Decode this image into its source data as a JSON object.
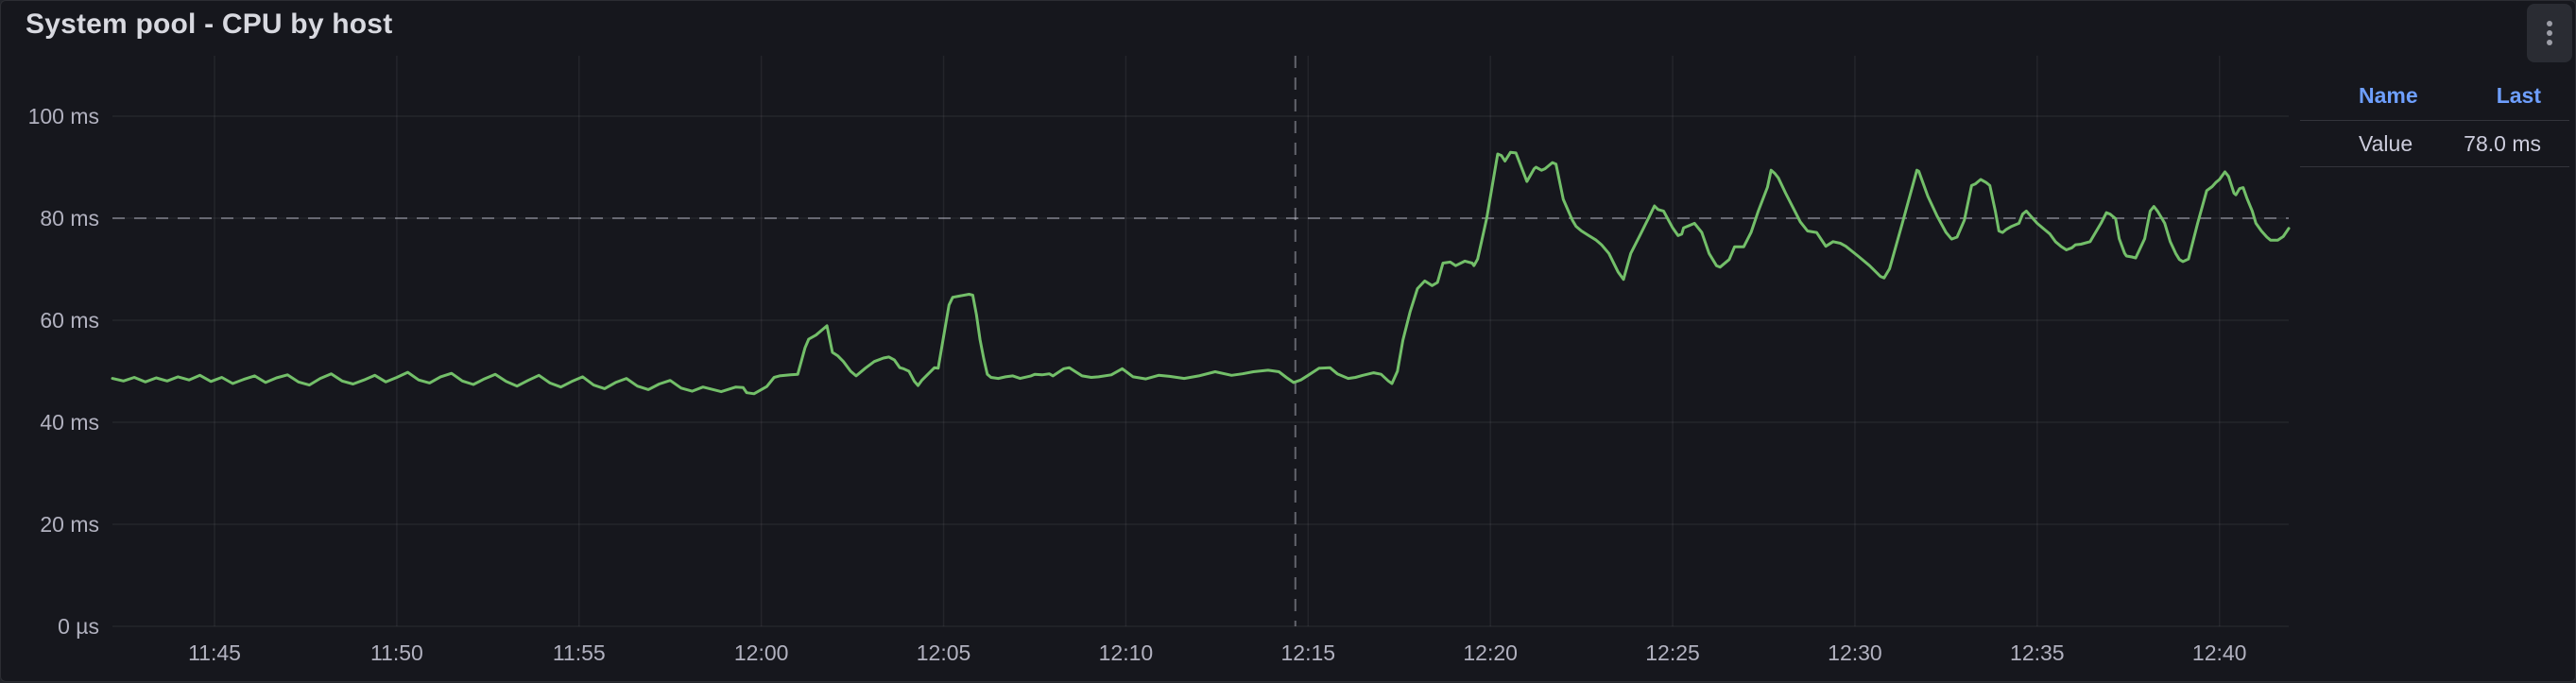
{
  "panel": {
    "title": "System pool - CPU by host",
    "menu_icon": "kebab-vertical-dots"
  },
  "colors": {
    "panel_bg": "#16171d",
    "series_green": "#73bf69",
    "legend_header_blue": "#6e9fff",
    "tick_text": "rgba(204,204,220,0.85)",
    "gridline": "rgba(204,204,220,0.08)",
    "crosshair": "rgba(204,204,220,0.42)"
  },
  "legend": {
    "name_header": "Name",
    "last_header": "Last"
  },
  "chart_data": {
    "type": "line",
    "title": "System pool - CPU by host",
    "unit": "ms",
    "legend_position": "right",
    "grid": true,
    "x_axis": {
      "min_minutes": 42.2,
      "max_minutes": 101.9,
      "note": "minutes after 11:00",
      "ticks": [
        {
          "t": 45,
          "label": "11:45"
        },
        {
          "t": 50,
          "label": "11:50"
        },
        {
          "t": 55,
          "label": "11:55"
        },
        {
          "t": 60,
          "label": "12:00"
        },
        {
          "t": 65,
          "label": "12:05"
        },
        {
          "t": 70,
          "label": "12:10"
        },
        {
          "t": 75,
          "label": "12:15"
        },
        {
          "t": 80,
          "label": "12:20"
        },
        {
          "t": 85,
          "label": "12:25"
        },
        {
          "t": 90,
          "label": "12:30"
        },
        {
          "t": 95,
          "label": "12:35"
        },
        {
          "t": 100,
          "label": "12:40"
        }
      ]
    },
    "y_axis": {
      "min": 0,
      "plot_max": 112,
      "ticks": [
        {
          "v": 0,
          "label": "0 µs"
        },
        {
          "v": 20,
          "label": "20 ms"
        },
        {
          "v": 40,
          "label": "40 ms"
        },
        {
          "v": 60,
          "label": "60 ms"
        },
        {
          "v": 80,
          "label": "80 ms"
        },
        {
          "v": 100,
          "label": "100 ms"
        }
      ]
    },
    "crosshair": {
      "t": 74.65,
      "v": 80
    },
    "series": [
      {
        "name": "Value",
        "color": "#73bf69",
        "last": "78.0 ms",
        "points": [
          [
            42.2,
            48.6
          ],
          [
            42.5,
            48.1
          ],
          [
            42.8,
            48.8
          ],
          [
            43.1,
            47.9
          ],
          [
            43.4,
            48.7
          ],
          [
            43.7,
            48.1
          ],
          [
            44.0,
            48.9
          ],
          [
            44.3,
            48.3
          ],
          [
            44.6,
            49.2
          ],
          [
            44.9,
            48.0
          ],
          [
            45.2,
            48.8
          ],
          [
            45.5,
            47.6
          ],
          [
            45.8,
            48.4
          ],
          [
            46.1,
            49.1
          ],
          [
            46.4,
            47.8
          ],
          [
            46.7,
            48.7
          ],
          [
            47.0,
            49.3
          ],
          [
            47.3,
            47.9
          ],
          [
            47.6,
            47.3
          ],
          [
            47.9,
            48.6
          ],
          [
            48.2,
            49.5
          ],
          [
            48.5,
            48.1
          ],
          [
            48.8,
            47.5
          ],
          [
            49.1,
            48.3
          ],
          [
            49.4,
            49.2
          ],
          [
            49.7,
            47.9
          ],
          [
            50.0,
            48.8
          ],
          [
            50.3,
            49.8
          ],
          [
            50.6,
            48.3
          ],
          [
            50.9,
            47.7
          ],
          [
            51.2,
            48.9
          ],
          [
            51.5,
            49.6
          ],
          [
            51.8,
            48.1
          ],
          [
            52.1,
            47.4
          ],
          [
            52.4,
            48.5
          ],
          [
            52.7,
            49.4
          ],
          [
            53.0,
            48.0
          ],
          [
            53.3,
            47.1
          ],
          [
            53.6,
            48.2
          ],
          [
            53.9,
            49.2
          ],
          [
            54.2,
            47.7
          ],
          [
            54.5,
            46.9
          ],
          [
            54.8,
            48.0
          ],
          [
            55.1,
            48.9
          ],
          [
            55.4,
            47.3
          ],
          [
            55.7,
            46.6
          ],
          [
            56.0,
            47.8
          ],
          [
            56.3,
            48.6
          ],
          [
            56.6,
            47.1
          ],
          [
            56.9,
            46.4
          ],
          [
            57.2,
            47.5
          ],
          [
            57.5,
            48.2
          ],
          [
            57.8,
            46.7
          ],
          [
            58.1,
            46.1
          ],
          [
            58.4,
            46.9
          ],
          [
            58.9,
            46.0
          ],
          [
            59.3,
            46.9
          ],
          [
            59.5,
            46.8
          ],
          [
            59.6,
            45.8
          ],
          [
            59.8,
            45.6
          ],
          [
            60.15,
            47.0
          ],
          [
            60.35,
            48.8
          ],
          [
            60.5,
            49.1
          ],
          [
            60.8,
            49.3
          ],
          [
            61.0,
            49.4
          ],
          [
            61.2,
            54.6
          ],
          [
            61.3,
            56.3
          ],
          [
            61.5,
            57.1
          ],
          [
            61.8,
            58.9
          ],
          [
            61.95,
            53.7
          ],
          [
            62.1,
            53.0
          ],
          [
            62.25,
            51.9
          ],
          [
            62.45,
            50.0
          ],
          [
            62.6,
            49.1
          ],
          [
            62.85,
            50.6
          ],
          [
            63.1,
            51.9
          ],
          [
            63.35,
            52.6
          ],
          [
            63.5,
            52.8
          ],
          [
            63.65,
            52.2
          ],
          [
            63.8,
            50.7
          ],
          [
            63.9,
            50.5
          ],
          [
            64.05,
            50.0
          ],
          [
            64.2,
            48.0
          ],
          [
            64.3,
            47.2
          ],
          [
            64.4,
            48.2
          ],
          [
            64.75,
            50.7
          ],
          [
            64.85,
            50.6
          ],
          [
            65.15,
            63.0
          ],
          [
            65.25,
            64.5
          ],
          [
            65.4,
            64.7
          ],
          [
            65.7,
            65.1
          ],
          [
            65.8,
            64.9
          ],
          [
            65.9,
            61.1
          ],
          [
            66.0,
            56.2
          ],
          [
            66.1,
            52.5
          ],
          [
            66.2,
            49.4
          ],
          [
            66.3,
            48.8
          ],
          [
            66.5,
            48.6
          ],
          [
            66.7,
            48.9
          ],
          [
            66.9,
            49.1
          ],
          [
            67.1,
            48.6
          ],
          [
            67.4,
            49.1
          ],
          [
            67.5,
            49.4
          ],
          [
            67.7,
            49.3
          ],
          [
            67.9,
            49.5
          ],
          [
            68.0,
            49.1
          ],
          [
            68.3,
            50.5
          ],
          [
            68.45,
            50.7
          ],
          [
            68.6,
            50.0
          ],
          [
            68.8,
            49.1
          ],
          [
            69.05,
            48.8
          ],
          [
            69.25,
            48.9
          ],
          [
            69.6,
            49.3
          ],
          [
            69.9,
            50.5
          ],
          [
            70.2,
            48.9
          ],
          [
            70.55,
            48.5
          ],
          [
            70.9,
            49.2
          ],
          [
            71.2,
            49.0
          ],
          [
            71.6,
            48.6
          ],
          [
            72.0,
            49.1
          ],
          [
            72.45,
            49.9
          ],
          [
            72.9,
            49.2
          ],
          [
            73.2,
            49.5
          ],
          [
            73.5,
            49.9
          ],
          [
            73.9,
            50.2
          ],
          [
            74.2,
            49.9
          ],
          [
            74.4,
            48.8
          ],
          [
            74.6,
            47.8
          ],
          [
            74.8,
            48.3
          ],
          [
            75.0,
            49.2
          ],
          [
            75.3,
            50.6
          ],
          [
            75.6,
            50.7
          ],
          [
            75.8,
            49.5
          ],
          [
            76.1,
            48.6
          ],
          [
            76.3,
            48.8
          ],
          [
            76.5,
            49.2
          ],
          [
            76.8,
            49.7
          ],
          [
            77.0,
            49.4
          ],
          [
            77.2,
            48.1
          ],
          [
            77.3,
            47.6
          ],
          [
            77.45,
            50.0
          ],
          [
            77.6,
            56.1
          ],
          [
            77.8,
            61.7
          ],
          [
            78.0,
            66.2
          ],
          [
            78.2,
            67.7
          ],
          [
            78.4,
            66.8
          ],
          [
            78.55,
            67.4
          ],
          [
            78.7,
            71.2
          ],
          [
            78.9,
            71.4
          ],
          [
            79.05,
            70.7
          ],
          [
            79.3,
            71.6
          ],
          [
            79.5,
            71.2
          ],
          [
            79.55,
            70.7
          ],
          [
            79.65,
            72.0
          ],
          [
            79.9,
            80.0
          ],
          [
            80.2,
            92.6
          ],
          [
            80.3,
            92.3
          ],
          [
            80.4,
            91.2
          ],
          [
            80.55,
            92.9
          ],
          [
            80.7,
            92.8
          ],
          [
            81.0,
            87.2
          ],
          [
            81.2,
            89.7
          ],
          [
            81.25,
            90.0
          ],
          [
            81.4,
            89.4
          ],
          [
            81.5,
            89.7
          ],
          [
            81.7,
            90.9
          ],
          [
            81.8,
            90.6
          ],
          [
            82.0,
            83.7
          ],
          [
            82.25,
            79.6
          ],
          [
            82.35,
            78.4
          ],
          [
            82.5,
            77.5
          ],
          [
            82.7,
            76.6
          ],
          [
            82.9,
            75.7
          ],
          [
            83.05,
            74.8
          ],
          [
            83.25,
            73.1
          ],
          [
            83.5,
            69.5
          ],
          [
            83.65,
            68.0
          ],
          [
            83.85,
            73.1
          ],
          [
            84.1,
            76.6
          ],
          [
            84.35,
            80.2
          ],
          [
            84.5,
            82.4
          ],
          [
            84.6,
            81.7
          ],
          [
            84.75,
            81.4
          ],
          [
            85.0,
            78.1
          ],
          [
            85.15,
            76.6
          ],
          [
            85.25,
            76.9
          ],
          [
            85.3,
            78.1
          ],
          [
            85.5,
            78.7
          ],
          [
            85.6,
            79.0
          ],
          [
            85.8,
            77.2
          ],
          [
            86.0,
            73.1
          ],
          [
            86.2,
            70.7
          ],
          [
            86.3,
            70.4
          ],
          [
            86.55,
            71.9
          ],
          [
            86.7,
            74.4
          ],
          [
            86.95,
            74.4
          ],
          [
            87.15,
            77.2
          ],
          [
            87.35,
            81.4
          ],
          [
            87.6,
            86.1
          ],
          [
            87.7,
            89.4
          ],
          [
            87.8,
            88.8
          ],
          [
            87.9,
            87.9
          ],
          [
            88.1,
            84.9
          ],
          [
            88.35,
            81.4
          ],
          [
            88.5,
            79.3
          ],
          [
            88.7,
            77.5
          ],
          [
            88.95,
            77.2
          ],
          [
            89.2,
            74.5
          ],
          [
            89.4,
            75.4
          ],
          [
            89.6,
            75.1
          ],
          [
            89.75,
            74.5
          ],
          [
            90.1,
            72.5
          ],
          [
            90.4,
            70.7
          ],
          [
            90.7,
            68.6
          ],
          [
            90.8,
            68.3
          ],
          [
            90.95,
            70.1
          ],
          [
            91.3,
            79.0
          ],
          [
            91.7,
            89.4
          ],
          [
            91.75,
            89.2
          ],
          [
            92.0,
            84.3
          ],
          [
            92.25,
            80.5
          ],
          [
            92.5,
            77.2
          ],
          [
            92.65,
            75.9
          ],
          [
            92.8,
            76.3
          ],
          [
            93.0,
            79.6
          ],
          [
            93.2,
            86.4
          ],
          [
            93.3,
            86.7
          ],
          [
            93.45,
            87.6
          ],
          [
            93.6,
            87.0
          ],
          [
            93.7,
            86.4
          ],
          [
            93.85,
            81.4
          ],
          [
            93.95,
            77.5
          ],
          [
            94.05,
            77.2
          ],
          [
            94.15,
            77.8
          ],
          [
            94.3,
            78.4
          ],
          [
            94.5,
            79.0
          ],
          [
            94.6,
            80.8
          ],
          [
            94.7,
            81.4
          ],
          [
            94.85,
            80.2
          ],
          [
            95.0,
            79.0
          ],
          [
            95.2,
            77.8
          ],
          [
            95.35,
            76.9
          ],
          [
            95.5,
            75.4
          ],
          [
            95.65,
            74.5
          ],
          [
            95.8,
            73.8
          ],
          [
            95.95,
            74.2
          ],
          [
            96.05,
            74.8
          ],
          [
            96.2,
            74.9
          ],
          [
            96.45,
            75.4
          ],
          [
            96.75,
            79.0
          ],
          [
            96.9,
            81.1
          ],
          [
            97.0,
            80.8
          ],
          [
            97.15,
            79.9
          ],
          [
            97.25,
            76.0
          ],
          [
            97.4,
            73.1
          ],
          [
            97.45,
            72.6
          ],
          [
            97.6,
            72.4
          ],
          [
            97.7,
            72.2
          ],
          [
            97.95,
            76.0
          ],
          [
            98.1,
            81.4
          ],
          [
            98.2,
            82.3
          ],
          [
            98.3,
            81.4
          ],
          [
            98.4,
            80.2
          ],
          [
            98.5,
            79.0
          ],
          [
            98.65,
            75.4
          ],
          [
            98.8,
            73.1
          ],
          [
            98.9,
            71.9
          ],
          [
            99.0,
            71.5
          ],
          [
            99.15,
            72.0
          ],
          [
            99.4,
            79.0
          ],
          [
            99.65,
            85.4
          ],
          [
            99.8,
            86.2
          ],
          [
            99.9,
            87.0
          ],
          [
            100.0,
            87.6
          ],
          [
            100.15,
            89.1
          ],
          [
            100.25,
            88.2
          ],
          [
            100.4,
            84.9
          ],
          [
            100.45,
            84.6
          ],
          [
            100.55,
            85.8
          ],
          [
            100.65,
            86.0
          ],
          [
            100.75,
            84.0
          ],
          [
            100.9,
            81.4
          ],
          [
            101.0,
            79.0
          ],
          [
            101.15,
            77.5
          ],
          [
            101.3,
            76.3
          ],
          [
            101.4,
            75.7
          ],
          [
            101.6,
            75.7
          ],
          [
            101.75,
            76.4
          ],
          [
            101.9,
            78.0
          ]
        ]
      }
    ]
  }
}
